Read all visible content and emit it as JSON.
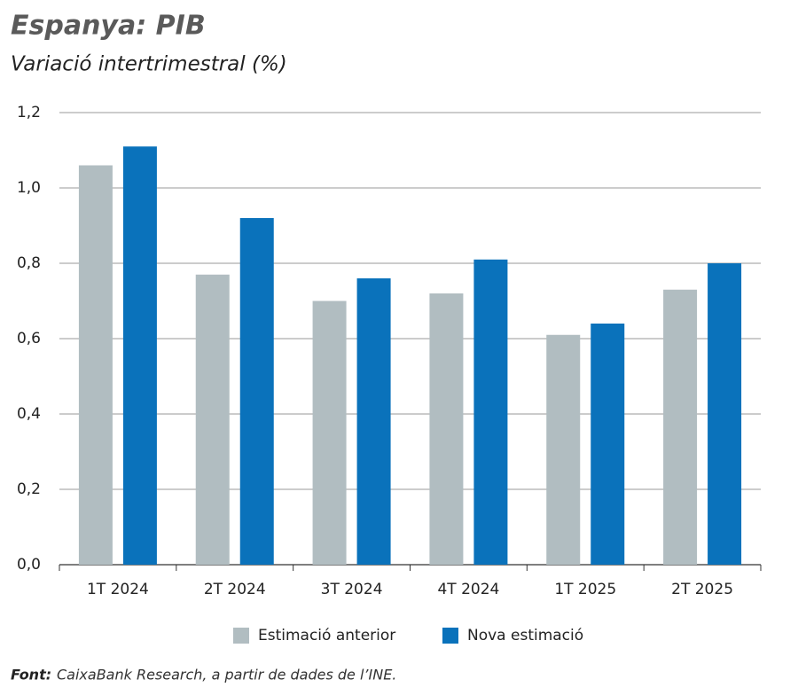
{
  "chart_data": {
    "type": "bar",
    "title": "Espanya: PIB",
    "subtitle": "Variació intertrimestral (%)",
    "categories": [
      "1T 2024",
      "2T 2024",
      "3T 2024",
      "4T 2024",
      "1T 2025",
      "2T 2025"
    ],
    "series": [
      {
        "name": "Estimació anterior",
        "color": "#b1bdc1",
        "values": [
          1.06,
          0.77,
          0.7,
          0.72,
          0.61,
          0.73
        ]
      },
      {
        "name": "Nova estimació",
        "color": "#0a72bb",
        "values": [
          1.11,
          0.92,
          0.76,
          0.81,
          0.64,
          0.8
        ]
      }
    ],
    "ylim": [
      0,
      1.2
    ],
    "yticks": [
      {
        "value": 0,
        "label": "0,0"
      },
      {
        "value": 0.2,
        "label": "0,2"
      },
      {
        "value": 0.4,
        "label": "0,4"
      },
      {
        "value": 0.6,
        "label": "0,6"
      },
      {
        "value": 0.8,
        "label": "0,8"
      },
      {
        "value": 1.0,
        "label": "1,0"
      },
      {
        "value": 1.2,
        "label": "1,2"
      }
    ],
    "grid": true,
    "legend": "bottom",
    "source_label": "Font:",
    "source": "CaixaBank Research, a partir de dades de l’INE."
  }
}
